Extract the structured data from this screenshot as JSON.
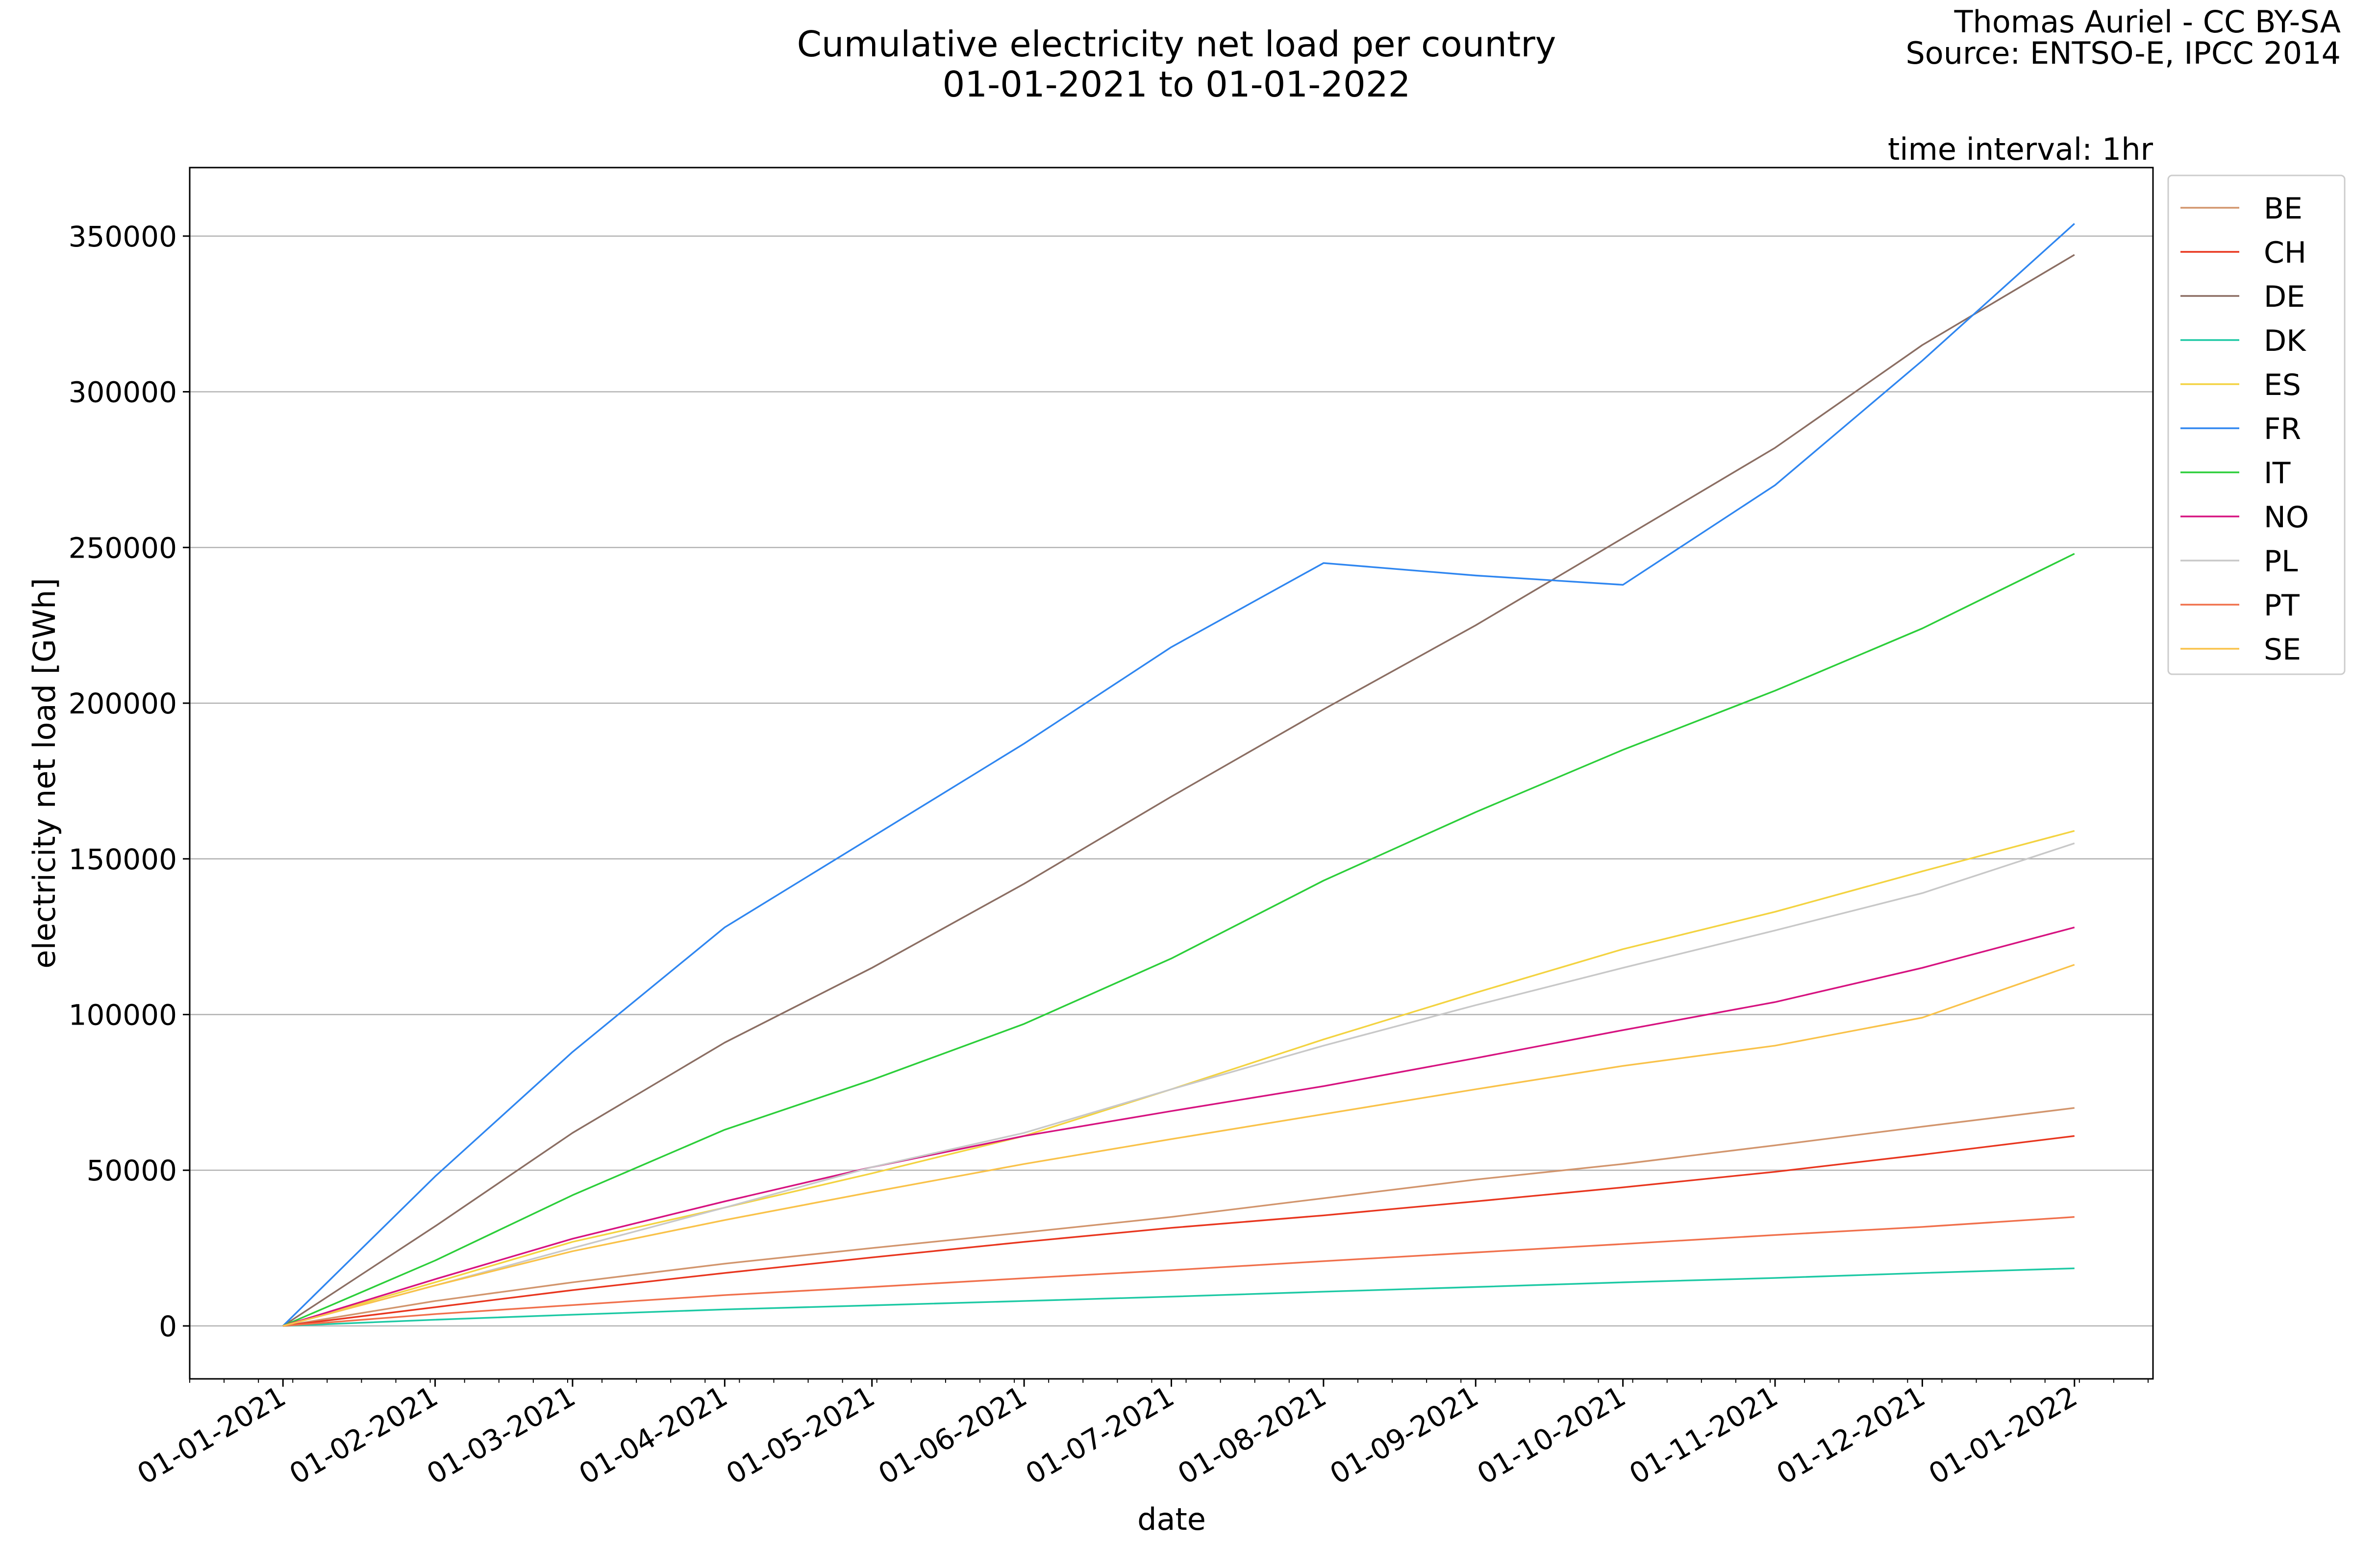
{
  "header": {
    "title_line1": "Cumulative electricity net load per country",
    "title_line2": "01-01-2021 to 01-01-2022",
    "credit_line1": "Thomas Auriel - CC BY-SA",
    "credit_line2": "Source: ENTSO-E, IPCC 2014",
    "interval_note": "time interval: 1hr"
  },
  "chart_data": {
    "type": "line",
    "xlabel": "date",
    "ylabel": "electricity net load [GWh]",
    "x_range": [
      "2020-12-13",
      "2022-01-17"
    ],
    "ylim": [
      -17000,
      372000
    ],
    "y_ticks": [
      0,
      50000,
      100000,
      150000,
      200000,
      250000,
      300000,
      350000
    ],
    "x_ticks": [
      {
        "date": "2021-01-01",
        "label": "01-01-2021"
      },
      {
        "date": "2021-02-01",
        "label": "01-02-2021"
      },
      {
        "date": "2021-03-01",
        "label": "01-03-2021"
      },
      {
        "date": "2021-04-01",
        "label": "01-04-2021"
      },
      {
        "date": "2021-05-01",
        "label": "01-05-2021"
      },
      {
        "date": "2021-06-01",
        "label": "01-06-2021"
      },
      {
        "date": "2021-07-01",
        "label": "01-07-2021"
      },
      {
        "date": "2021-08-01",
        "label": "01-08-2021"
      },
      {
        "date": "2021-09-01",
        "label": "01-09-2021"
      },
      {
        "date": "2021-10-01",
        "label": "01-10-2021"
      },
      {
        "date": "2021-11-01",
        "label": "01-11-2021"
      },
      {
        "date": "2021-12-01",
        "label": "01-12-2021"
      },
      {
        "date": "2022-01-01",
        "label": "01-01-2022"
      }
    ],
    "grid": "horizontal",
    "legend_position": "right",
    "x": [
      "2021-01-01",
      "2021-02-01",
      "2021-03-01",
      "2021-04-01",
      "2021-05-01",
      "2021-06-01",
      "2021-07-01",
      "2021-08-01",
      "2021-09-01",
      "2021-10-01",
      "2021-11-01",
      "2021-12-01",
      "2022-01-01"
    ],
    "series": [
      {
        "name": "BE",
        "color": "#d2956d",
        "values": [
          0,
          8000,
          14000,
          20000,
          25000,
          30000,
          35000,
          41000,
          47000,
          52000,
          58000,
          64000,
          70000
        ]
      },
      {
        "name": "CH",
        "color": "#e8361f",
        "values": [
          0,
          6000,
          11500,
          17000,
          22000,
          27000,
          31500,
          35500,
          40000,
          44500,
          49500,
          55000,
          61000
        ]
      },
      {
        "name": "DE",
        "color": "#8b6e63",
        "values": [
          0,
          32000,
          62000,
          91000,
          115000,
          142000,
          170000,
          198000,
          225000,
          253000,
          282000,
          315000,
          344000
        ]
      },
      {
        "name": "DK",
        "color": "#1dc9a4",
        "values": [
          0,
          2000,
          3600,
          5300,
          6600,
          8000,
          9400,
          11000,
          12500,
          14000,
          15400,
          17000,
          18500
        ]
      },
      {
        "name": "ES",
        "color": "#f3d341",
        "values": [
          0,
          14000,
          27000,
          38000,
          49000,
          61000,
          76000,
          92000,
          107000,
          121000,
          133000,
          146000,
          159000
        ]
      },
      {
        "name": "FR",
        "color": "#2f86f0",
        "values": [
          0,
          48000,
          88000,
          128000,
          157000,
          187000,
          218000,
          245000,
          241000,
          238000,
          270000,
          310000,
          354000
        ]
      },
      {
        "name": "IT",
        "color": "#2cce3a",
        "values": [
          0,
          21000,
          42000,
          63000,
          79000,
          97000,
          118000,
          143000,
          165000,
          185000,
          204000,
          224000,
          248000
        ]
      },
      {
        "name": "NO",
        "color": "#d61380",
        "values": [
          0,
          15000,
          28000,
          40000,
          51000,
          61000,
          69000,
          77000,
          86000,
          95000,
          104000,
          115000,
          128000
        ]
      },
      {
        "name": "PL",
        "color": "#c8c8c8",
        "values": [
          0,
          13000,
          25000,
          38000,
          51000,
          62000,
          76000,
          90000,
          103000,
          115000,
          127000,
          139000,
          155000
        ]
      },
      {
        "name": "PT",
        "color": "#f0704c",
        "values": [
          0,
          3800,
          6700,
          9900,
          12500,
          15300,
          17900,
          20800,
          23600,
          26300,
          29200,
          31800,
          35000
        ]
      },
      {
        "name": "SE",
        "color": "#f9c24a",
        "values": [
          0,
          13000,
          24000,
          34000,
          43000,
          52000,
          60000,
          68000,
          76000,
          83500,
          90000,
          99000,
          116000
        ]
      }
    ]
  }
}
